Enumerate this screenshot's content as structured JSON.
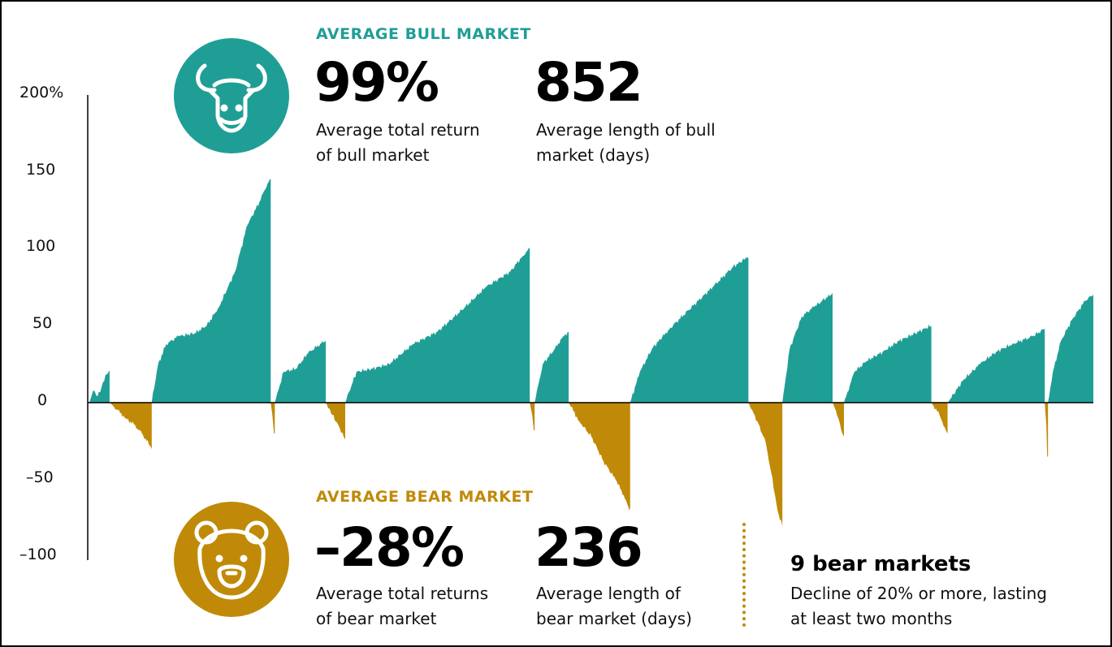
{
  "colors": {
    "bull": "#1f9e96",
    "bear": "#c08a08",
    "axis": "#000000"
  },
  "bull": {
    "header": "AVERAGE BULL MARKET",
    "icon": "bull-icon",
    "stat1": {
      "value": "99%",
      "caption1": "Average total return",
      "caption2": "of bull market"
    },
    "stat2": {
      "value": "852",
      "caption1": "Average length of bull",
      "caption2": "market (days)"
    }
  },
  "bear": {
    "header": "AVERAGE BEAR MARKET",
    "icon": "bear-icon",
    "stat1": {
      "value": "–28%",
      "caption1": "Average total returns",
      "caption2": "of bear market"
    },
    "stat2": {
      "value": "236",
      "caption1": "Average length of",
      "caption2": "bear market (days)"
    }
  },
  "note": {
    "title": "9 bear markets",
    "line1": "Decline of 20% or more, lasting",
    "line2": "at least two months"
  },
  "chart_data": {
    "type": "area",
    "y_tick_labels": [
      "200%",
      "150",
      "100",
      "50",
      "0",
      "–50",
      "–100"
    ],
    "ylim": [
      -100,
      200
    ],
    "x_range": [
      0,
      1240
    ],
    "x_note": "relative time position across the period; no x-axis labels shown",
    "series": [
      {
        "kind": "bull",
        "points": [
          [
            0,
            0
          ],
          [
            5,
            8
          ],
          [
            10,
            4
          ],
          [
            15,
            10
          ],
          [
            20,
            18
          ],
          [
            25,
            21
          ],
          [
            25,
            0
          ]
        ]
      },
      {
        "kind": "bear",
        "points": [
          [
            25,
            0
          ],
          [
            35,
            -5
          ],
          [
            45,
            -10
          ],
          [
            55,
            -14
          ],
          [
            65,
            -20
          ],
          [
            75,
            -28
          ],
          [
            77,
            -30
          ],
          [
            77,
            0
          ]
        ]
      },
      {
        "kind": "bull",
        "points": [
          [
            77,
            0
          ],
          [
            85,
            25
          ],
          [
            95,
            38
          ],
          [
            110,
            43
          ],
          [
            130,
            45
          ],
          [
            145,
            50
          ],
          [
            160,
            62
          ],
          [
            180,
            85
          ],
          [
            195,
            115
          ],
          [
            210,
            130
          ],
          [
            220,
            142
          ],
          [
            224,
            145
          ],
          [
            224,
            0
          ]
        ]
      },
      {
        "kind": "bear",
        "points": [
          [
            224,
            0
          ],
          [
            226,
            -8
          ],
          [
            228,
            -20
          ],
          [
            229,
            -20
          ],
          [
            229,
            0
          ]
        ]
      },
      {
        "kind": "bull",
        "points": [
          [
            229,
            0
          ],
          [
            240,
            20
          ],
          [
            255,
            22
          ],
          [
            270,
            32
          ],
          [
            285,
            38
          ],
          [
            292,
            40
          ],
          [
            292,
            0
          ]
        ]
      },
      {
        "kind": "bear",
        "points": [
          [
            292,
            0
          ],
          [
            300,
            -8
          ],
          [
            308,
            -15
          ],
          [
            314,
            -22
          ],
          [
            316,
            -24
          ],
          [
            316,
            0
          ]
        ]
      },
      {
        "kind": "bull",
        "points": [
          [
            316,
            0
          ],
          [
            330,
            20
          ],
          [
            350,
            22
          ],
          [
            370,
            25
          ],
          [
            400,
            38
          ],
          [
            430,
            46
          ],
          [
            460,
            60
          ],
          [
            490,
            75
          ],
          [
            520,
            85
          ],
          [
            535,
            95
          ],
          [
            544,
            100
          ],
          [
            544,
            0
          ]
        ]
      },
      {
        "kind": "bear",
        "points": [
          [
            544,
            0
          ],
          [
            547,
            -8
          ],
          [
            549,
            -18
          ],
          [
            550,
            -18
          ],
          [
            550,
            0
          ]
        ]
      },
      {
        "kind": "bull",
        "points": [
          [
            550,
            0
          ],
          [
            560,
            25
          ],
          [
            575,
            35
          ],
          [
            585,
            43
          ],
          [
            592,
            46
          ],
          [
            592,
            0
          ]
        ]
      },
      {
        "kind": "bear",
        "points": [
          [
            592,
            0
          ],
          [
            605,
            -12
          ],
          [
            620,
            -22
          ],
          [
            635,
            -38
          ],
          [
            650,
            -50
          ],
          [
            660,
            -60
          ],
          [
            667,
            -70
          ],
          [
            668,
            -68
          ],
          [
            668,
            0
          ]
        ]
      },
      {
        "kind": "bull",
        "points": [
          [
            668,
            0
          ],
          [
            680,
            20
          ],
          [
            695,
            35
          ],
          [
            715,
            47
          ],
          [
            740,
            60
          ],
          [
            770,
            75
          ],
          [
            795,
            88
          ],
          [
            812,
            94
          ],
          [
            814,
            94
          ],
          [
            814,
            0
          ]
        ]
      },
      {
        "kind": "bear",
        "points": [
          [
            814,
            0
          ],
          [
            825,
            -12
          ],
          [
            835,
            -25
          ],
          [
            842,
            -45
          ],
          [
            850,
            -70
          ],
          [
            856,
            -80
          ],
          [
            856,
            0
          ]
        ]
      },
      {
        "kind": "bull",
        "points": [
          [
            856,
            0
          ],
          [
            865,
            35
          ],
          [
            880,
            56
          ],
          [
            895,
            62
          ],
          [
            910,
            68
          ],
          [
            918,
            71
          ],
          [
            918,
            0
          ]
        ]
      },
      {
        "kind": "bear",
        "points": [
          [
            918,
            0
          ],
          [
            925,
            -10
          ],
          [
            930,
            -20
          ],
          [
            932,
            -22
          ],
          [
            932,
            0
          ]
        ]
      },
      {
        "kind": "bull",
        "points": [
          [
            932,
            0
          ],
          [
            945,
            20
          ],
          [
            960,
            27
          ],
          [
            980,
            33
          ],
          [
            1000,
            40
          ],
          [
            1020,
            45
          ],
          [
            1040,
            50
          ],
          [
            1040,
            0
          ]
        ]
      },
      {
        "kind": "bear",
        "points": [
          [
            1040,
            0
          ],
          [
            1050,
            -8
          ],
          [
            1055,
            -15
          ],
          [
            1060,
            -20
          ],
          [
            1060,
            0
          ]
        ]
      },
      {
        "kind": "bull",
        "points": [
          [
            1060,
            0
          ],
          [
            1080,
            15
          ],
          [
            1100,
            25
          ],
          [
            1120,
            33
          ],
          [
            1140,
            38
          ],
          [
            1165,
            43
          ],
          [
            1180,
            48
          ],
          [
            1180,
            0
          ]
        ]
      },
      {
        "kind": "bear",
        "points": [
          [
            1180,
            0
          ],
          [
            1182,
            -15
          ],
          [
            1183,
            -35
          ],
          [
            1184,
            -35
          ],
          [
            1184,
            0
          ]
        ]
      },
      {
        "kind": "bull",
        "points": [
          [
            1184,
            0
          ],
          [
            1190,
            20
          ],
          [
            1200,
            40
          ],
          [
            1215,
            55
          ],
          [
            1230,
            66
          ],
          [
            1240,
            70
          ],
          [
            1240,
            0
          ]
        ]
      }
    ]
  }
}
